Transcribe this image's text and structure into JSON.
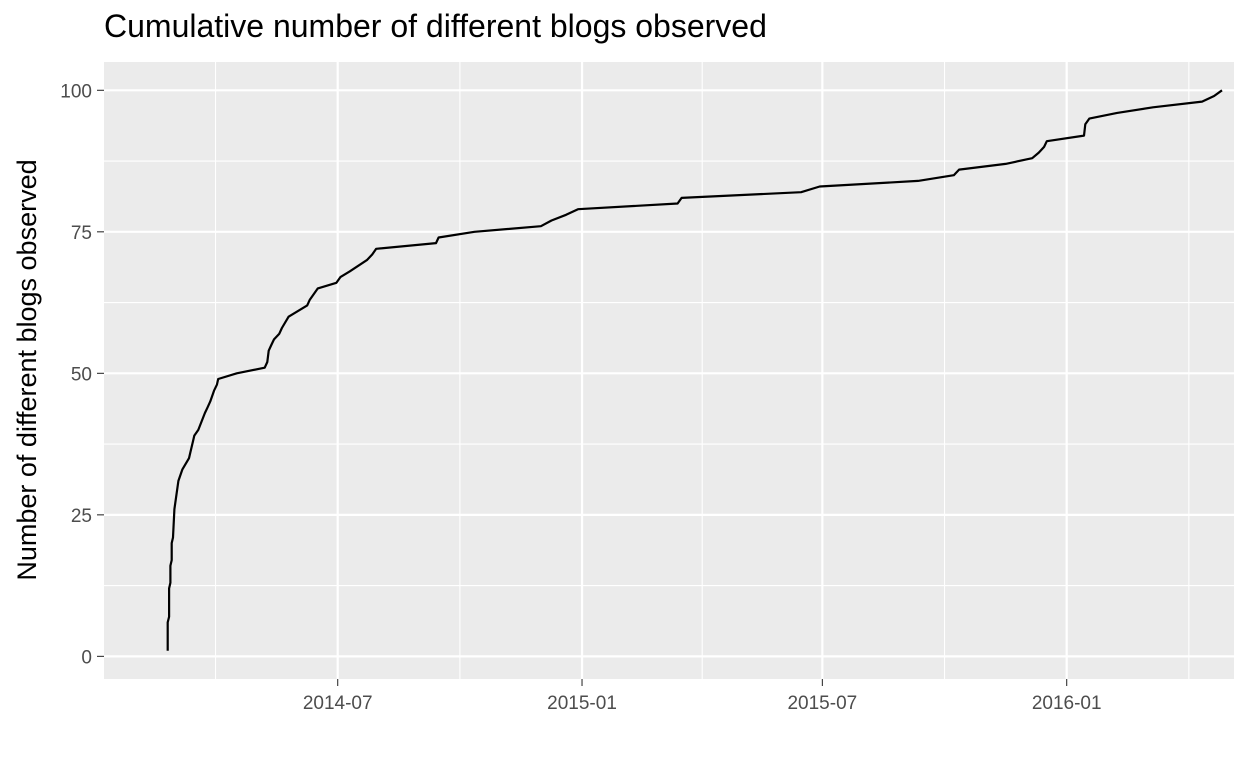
{
  "chart_data": {
    "type": "line",
    "title": "Cumulative number of different blogs observed",
    "xlabel": "",
    "ylabel": "Number of different blogs observed",
    "x_ticks": [
      "2014-07",
      "2015-01",
      "2015-07",
      "2016-01"
    ],
    "y_ticks": [
      0,
      25,
      50,
      75,
      100
    ],
    "xlim": [
      "2014-01-06",
      "2016-05-06"
    ],
    "ylim": [
      -4,
      105
    ],
    "grid": true,
    "legend": "none",
    "colors": {
      "panel": "#ebebeb",
      "grid": "#ffffff",
      "line": "#000000",
      "tick_label": "#4d4d4d"
    },
    "series": [
      {
        "x": [
          "2014-02-23",
          "2014-02-23",
          "2014-02-24",
          "2014-02-24",
          "2014-02-25",
          "2014-02-25",
          "2014-02-26",
          "2014-02-26",
          "2014-02-27",
          "2014-02-28",
          "2014-03-03",
          "2014-03-06",
          "2014-03-11",
          "2014-03-12",
          "2014-03-14",
          "2014-03-15",
          "2014-03-18",
          "2014-03-23",
          "2014-03-25",
          "2014-03-27",
          "2014-03-30",
          "2014-04-01",
          "2014-04-02",
          "2014-04-16",
          "2014-05-07",
          "2014-05-09",
          "2014-05-10",
          "2014-05-12",
          "2014-05-14",
          "2014-05-18",
          "2014-05-20",
          "2014-05-25",
          "2014-06-08",
          "2014-06-10",
          "2014-06-16",
          "2014-06-30",
          "2014-07-03",
          "2014-07-10",
          "2014-07-23",
          "2014-07-27",
          "2014-07-30",
          "2014-09-13",
          "2014-09-15",
          "2014-10-12",
          "2014-12-01",
          "2014-12-09",
          "2014-12-20",
          "2014-12-29",
          "2015-03-14",
          "2015-03-17",
          "2015-06-15",
          "2015-06-29",
          "2015-09-11",
          "2015-10-08",
          "2015-10-12",
          "2015-11-16",
          "2015-12-06",
          "2015-12-11",
          "2015-12-15",
          "2015-12-17",
          "2016-01-14",
          "2016-01-15",
          "2016-01-18",
          "2016-02-08",
          "2016-03-06",
          "2016-04-12",
          "2016-04-21",
          "2016-04-27"
        ],
        "y": [
          1,
          6,
          7,
          12,
          13,
          16,
          17,
          20,
          21,
          26,
          31,
          33,
          35,
          36,
          38,
          39,
          40,
          43,
          44,
          45,
          47,
          48,
          49,
          50,
          51,
          52,
          54,
          55,
          56,
          57,
          58,
          60,
          62,
          63,
          65,
          66,
          67,
          68,
          70,
          71,
          72,
          73,
          74,
          75,
          76,
          77,
          78,
          79,
          80,
          81,
          82,
          83,
          84,
          85,
          86,
          87,
          88,
          89,
          90,
          91,
          92,
          94,
          95,
          96,
          97,
          98,
          99,
          100
        ]
      }
    ]
  }
}
